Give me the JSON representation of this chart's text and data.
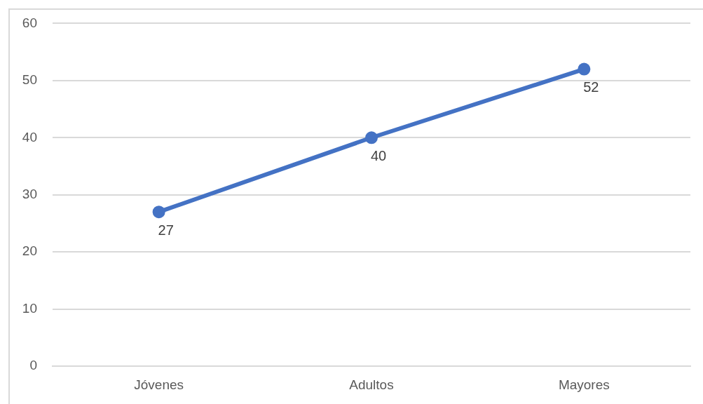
{
  "chart_data": {
    "type": "line",
    "categories": [
      "Jóvenes",
      "Adultos",
      "Mayores"
    ],
    "series": [
      {
        "color": "#4472c4",
        "values": [
          27,
          40,
          52
        ]
      }
    ],
    "ylim": [
      0,
      60
    ],
    "yticks": [
      0,
      10,
      20,
      30,
      40,
      50,
      60
    ],
    "grid": "y",
    "legend": false,
    "marker": "circle",
    "line_style": "solid",
    "data_labels": true
  }
}
